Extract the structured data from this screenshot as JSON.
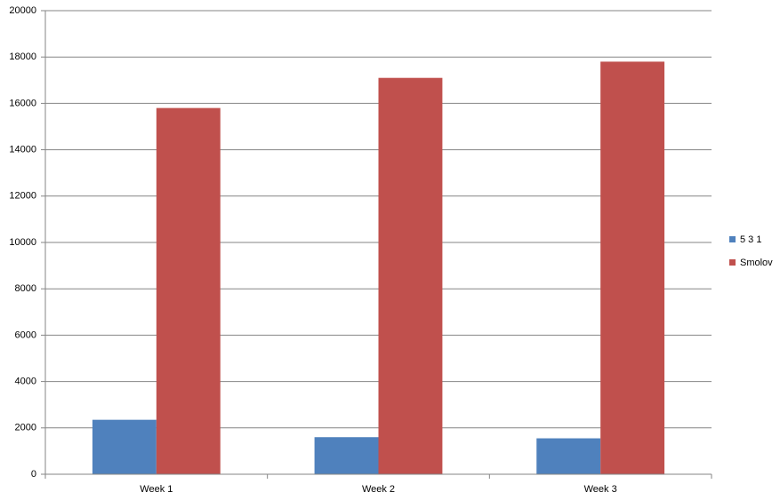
{
  "chart_data": {
    "type": "bar",
    "categories": [
      "Week 1",
      "Week 2",
      "Week 3"
    ],
    "series": [
      {
        "name": "5 3 1",
        "color": "#4f81bd",
        "values": [
          2350,
          1600,
          1550
        ]
      },
      {
        "name": "Smolov",
        "color": "#c0504d",
        "values": [
          15800,
          17100,
          17800
        ]
      }
    ],
    "ylim": [
      0,
      20000
    ],
    "yticks": [
      0,
      2000,
      4000,
      6000,
      8000,
      10000,
      12000,
      14000,
      16000,
      18000,
      20000
    ],
    "grid": true,
    "legend": "right"
  }
}
